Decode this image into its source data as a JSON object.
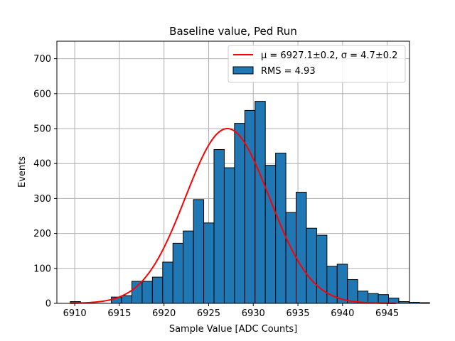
{
  "chart_data": {
    "type": "bar",
    "title": "Baseline value, Ped Run",
    "xlabel": "Sample Value [ADC Counts]",
    "ylabel": "Events",
    "xlim": [
      6908,
      6947.5
    ],
    "ylim": [
      0,
      750
    ],
    "xticks": [
      6910,
      6915,
      6920,
      6925,
      6930,
      6935,
      6940,
      6945
    ],
    "yticks": [
      0,
      100,
      200,
      300,
      400,
      500,
      600,
      700
    ],
    "grid": true,
    "legend_position": "top-right",
    "histogram": {
      "label": "RMS = 4.93",
      "color": "#1f77b4",
      "edge_color": "#000000",
      "bin_width": 1.15,
      "bin_start": 6909.5,
      "counts": [
        5,
        0,
        0,
        0,
        18,
        22,
        63,
        63,
        75,
        118,
        172,
        207,
        297,
        230,
        440,
        388,
        515,
        552,
        578,
        395,
        430,
        260,
        318,
        215,
        195,
        106,
        112,
        68,
        35,
        28,
        25,
        15,
        5,
        3,
        2
      ]
    },
    "fit": {
      "label_prefix": "μ = 6927.1±0.2, σ = 4.7±0.2",
      "color": "#ff0000",
      "mu": 6927.1,
      "sigma": 4.7,
      "amplitude": 500,
      "x_range": [
        6909.5,
        6946
      ]
    }
  }
}
